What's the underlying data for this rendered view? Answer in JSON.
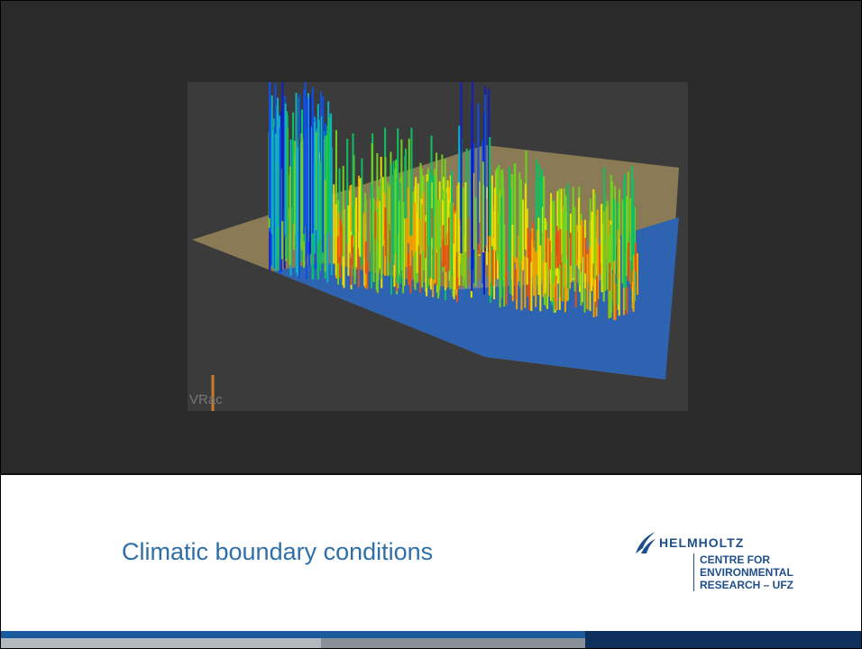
{
  "slide": {
    "title": "Climatic boundary conditions",
    "image_watermark": "VRac",
    "logo": {
      "name": "HELMHOLTZ",
      "lines": [
        "CENTRE FOR",
        "ENVIRONMENTAL",
        "RESEARCH – UFZ"
      ]
    }
  }
}
